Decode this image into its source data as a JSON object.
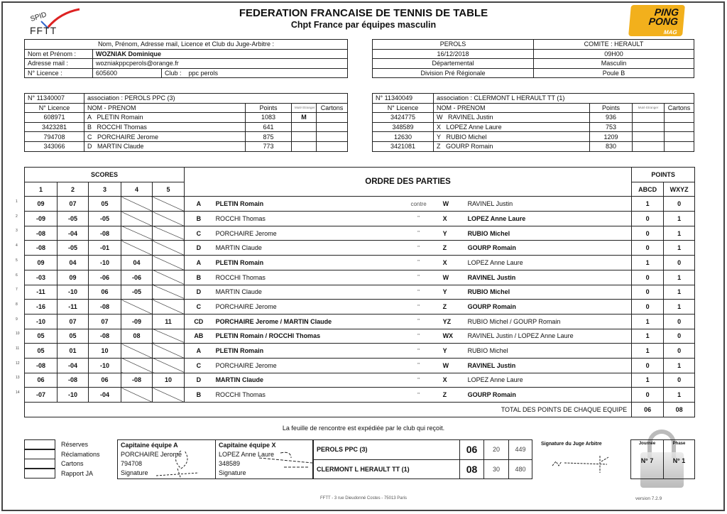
{
  "header": {
    "title": "FEDERATION FRANCAISE DE TENNIS DE TABLE",
    "subtitle": "Chpt France par équipes masculin",
    "logo_left": "SPID FFTT",
    "logo_right": "PING PONG MAG"
  },
  "arbitre": {
    "heading": "Nom, Prénom, Adresse mail, Licence et Club du Juge-Arbitre :",
    "name_label": "Nom et Prénom :",
    "name": "WOZNIAK   Dominique",
    "mail_label": "Adresse mail   :",
    "mail": "wozniakppcperols@orange.fr",
    "licence_label": "N° Licence     :",
    "licence": "605600",
    "club_label": "Club :",
    "club": "ppc perols"
  },
  "match": {
    "lieu": "PEROLS",
    "comite": "COMITE : HERAULT",
    "date": "16/12/2018",
    "heure": "09H00",
    "niveau": "Départemental",
    "sexe": "Masculin",
    "division": "Division  Pré Régionale",
    "poule": "Poule B"
  },
  "team_headers": {
    "licence": "N° Licence",
    "name": "NOM - PRENOM",
    "points": "Points",
    "mute": "Muté Etranger",
    "cartons": "Cartons"
  },
  "team_a": {
    "number": "N° 11340007",
    "association": "association : PEROLS PPC  (3)",
    "players": [
      {
        "licence": "608971",
        "letter": "A",
        "name": "PLETIN  Romain",
        "points": "1083",
        "mute": "M"
      },
      {
        "licence": "3423281",
        "letter": "B",
        "name": "ROCCHI  Thomas",
        "points": "641",
        "mute": ""
      },
      {
        "licence": "794708",
        "letter": "C",
        "name": "PORCHAIRE  Jerome",
        "points": "875",
        "mute": ""
      },
      {
        "licence": "343066",
        "letter": "D",
        "name": "MARTIN  Claude",
        "points": "773",
        "mute": ""
      }
    ]
  },
  "team_x": {
    "number": "N° 11340049",
    "association": "association : CLERMONT L HERAULT TT  (1)",
    "players": [
      {
        "licence": "3424775",
        "letter": "W",
        "name": "RAVINEL  Justin",
        "points": "936",
        "mute": ""
      },
      {
        "licence": "348589",
        "letter": "X",
        "name": "LOPEZ  Anne Laure",
        "points": "753",
        "mute": ""
      },
      {
        "licence": "12630",
        "letter": "Y",
        "name": "RUBIO  Michel",
        "points": "1209",
        "mute": ""
      },
      {
        "licence": "3421081",
        "letter": "Z",
        "name": "GOURP  Romain",
        "points": "830",
        "mute": ""
      }
    ]
  },
  "scores_table": {
    "scores_label": "SCORES",
    "set_headers": [
      "1",
      "2",
      "3",
      "4",
      "5"
    ],
    "order_label": "ORDRE DES PARTIES",
    "points_label": "POINTS",
    "abcd": "ABCD",
    "wxyz": "WXYZ",
    "contre": "contre",
    "ditto": "\"",
    "total_label": "TOTAL DES POINTS DE CHAQUE EQUIPE",
    "total_a": "06",
    "total_x": "08"
  },
  "games": [
    {
      "n": "1",
      "sets": [
        "09",
        "07",
        "05",
        "",
        ""
      ],
      "la": "A",
      "na": "PLETIN Romain",
      "lx": "W",
      "nx": "RAVINEL Justin",
      "pa": "1",
      "px": "0"
    },
    {
      "n": "2",
      "sets": [
        "-09",
        "-05",
        "-05",
        "",
        ""
      ],
      "la": "B",
      "na": "ROCCHI Thomas",
      "lx": "X",
      "nx": "LOPEZ Anne Laure",
      "pa": "0",
      "px": "1"
    },
    {
      "n": "3",
      "sets": [
        "-08",
        "-04",
        "-08",
        "",
        ""
      ],
      "la": "C",
      "na": "PORCHAIRE Jerome",
      "lx": "Y",
      "nx": "RUBIO Michel",
      "pa": "0",
      "px": "1"
    },
    {
      "n": "4",
      "sets": [
        "-08",
        "-05",
        "-01",
        "",
        ""
      ],
      "la": "D",
      "na": "MARTIN Claude",
      "lx": "Z",
      "nx": "GOURP Romain",
      "pa": "0",
      "px": "1"
    },
    {
      "n": "5",
      "sets": [
        "09",
        "04",
        "-10",
        "04",
        ""
      ],
      "la": "A",
      "na": "PLETIN Romain",
      "lx": "X",
      "nx": "LOPEZ Anne Laure",
      "pa": "1",
      "px": "0"
    },
    {
      "n": "6",
      "sets": [
        "-03",
        "09",
        "-06",
        "-06",
        ""
      ],
      "la": "B",
      "na": "ROCCHI Thomas",
      "lx": "W",
      "nx": "RAVINEL Justin",
      "pa": "0",
      "px": "1"
    },
    {
      "n": "7",
      "sets": [
        "-11",
        "-10",
        "06",
        "-05",
        ""
      ],
      "la": "D",
      "na": "MARTIN Claude",
      "lx": "Y",
      "nx": "RUBIO Michel",
      "pa": "0",
      "px": "1"
    },
    {
      "n": "8",
      "sets": [
        "-16",
        "-11",
        "-08",
        "",
        ""
      ],
      "la": "C",
      "na": "PORCHAIRE Jerome",
      "lx": "Z",
      "nx": "GOURP Romain",
      "pa": "0",
      "px": "1"
    },
    {
      "n": "9",
      "sets": [
        "-10",
        "07",
        "07",
        "-09",
        "11"
      ],
      "la": "CD",
      "na": "PORCHAIRE Jerome / MARTIN Claude",
      "lx": "YZ",
      "nx": "RUBIO Michel / GOURP Romain",
      "pa": "1",
      "px": "0"
    },
    {
      "n": "10",
      "sets": [
        "05",
        "05",
        "-08",
        "08",
        ""
      ],
      "la": "AB",
      "na": "PLETIN Romain / ROCCHI Thomas",
      "lx": "WX",
      "nx": "RAVINEL Justin / LOPEZ Anne Laure",
      "pa": "1",
      "px": "0"
    },
    {
      "n": "11",
      "sets": [
        "05",
        "01",
        "10",
        "",
        ""
      ],
      "la": "A",
      "na": "PLETIN Romain",
      "lx": "Y",
      "nx": "RUBIO Michel",
      "pa": "1",
      "px": "0"
    },
    {
      "n": "12",
      "sets": [
        "-08",
        "-04",
        "-10",
        "",
        ""
      ],
      "la": "C",
      "na": "PORCHAIRE Jerome",
      "lx": "W",
      "nx": "RAVINEL Justin",
      "pa": "0",
      "px": "1"
    },
    {
      "n": "13",
      "sets": [
        "06",
        "-08",
        "06",
        "-08",
        "10"
      ],
      "la": "D",
      "na": "MARTIN Claude",
      "lx": "X",
      "nx": "LOPEZ Anne Laure",
      "pa": "1",
      "px": "0"
    },
    {
      "n": "14",
      "sets": [
        "-07",
        "-10",
        "-04",
        "",
        ""
      ],
      "la": "B",
      "na": "ROCCHI Thomas",
      "lx": "Z",
      "nx": "GOURP Romain",
      "pa": "0",
      "px": "1"
    }
  ],
  "footer": {
    "note": "La feuille de rencontre est expédiée par le club qui reçoit.",
    "checks": [
      "Réserves",
      "Réclamations",
      "Cartons",
      "Rapport JA"
    ],
    "cap_a": {
      "title": "Capitaine équipe A",
      "name": "PORCHAIRE Jerome",
      "licence": "794708",
      "sig": "Signature"
    },
    "cap_x": {
      "title": "Capitaine équipe X",
      "name": "LOPEZ Anne Laure",
      "licence": "348589",
      "sig": "Signature"
    },
    "result": [
      {
        "team": "PEROLS PPC  (3)",
        "score": "06",
        "a": "20",
        "b": "449"
      },
      {
        "team": "CLERMONT L HERAULT TT  (1)",
        "score": "08",
        "a": "30",
        "b": "480"
      }
    ],
    "ja_sig_label": "Signature du Juge Arbitre",
    "journee_label": "Journée",
    "phase_label": "Phase",
    "journee": "N° 7",
    "phase": "N° 1",
    "address": "FFTT - 3 rue Dieudonné Costes - 75013 Paris",
    "version": "version 7.2.9"
  }
}
